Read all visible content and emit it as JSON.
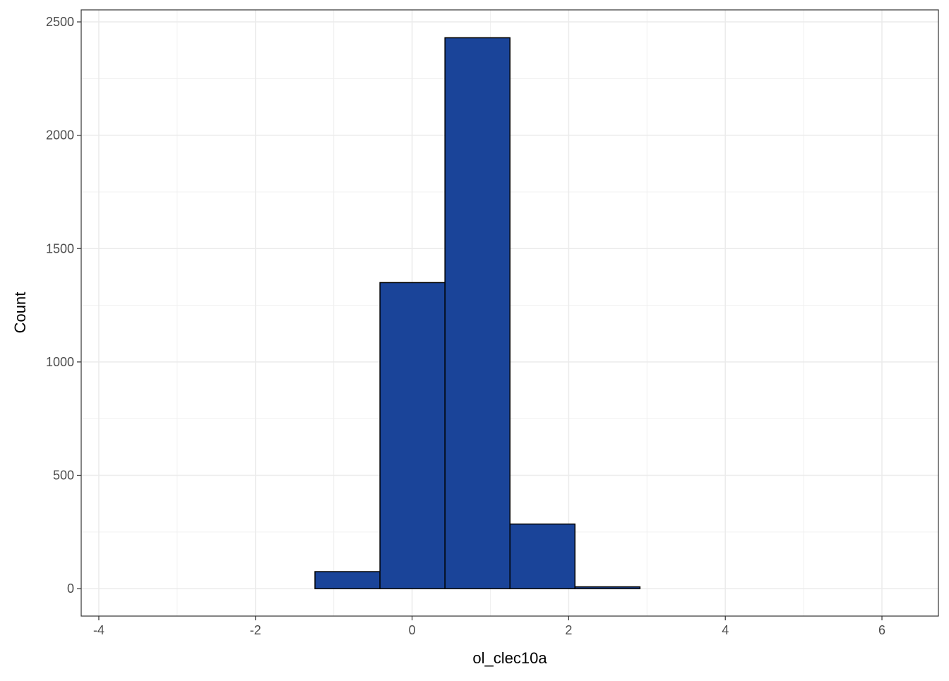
{
  "chart_data": {
    "type": "histogram",
    "x_label": "ol_clec10a",
    "y_label": "Count",
    "bins": [
      -3.72,
      -2.89,
      -2.06,
      -1.24,
      -0.41,
      0.42,
      1.25,
      2.08,
      2.91,
      3.73,
      4.56,
      5.39,
      6.22
    ],
    "values": [
      0,
      0,
      0,
      75,
      1350,
      2430,
      285,
      8,
      0,
      0,
      0,
      0
    ],
    "color": "#1a4499",
    "edge_color": "#000000",
    "xlim": [
      -4.225,
      6.721
    ],
    "ylim": [
      -121,
      2553
    ],
    "xticks": [
      -4,
      -2,
      0,
      2,
      4,
      6
    ],
    "yticks": [
      0,
      500,
      1000,
      1500,
      2000,
      2500
    ],
    "grid": true,
    "minor_grid": true
  }
}
